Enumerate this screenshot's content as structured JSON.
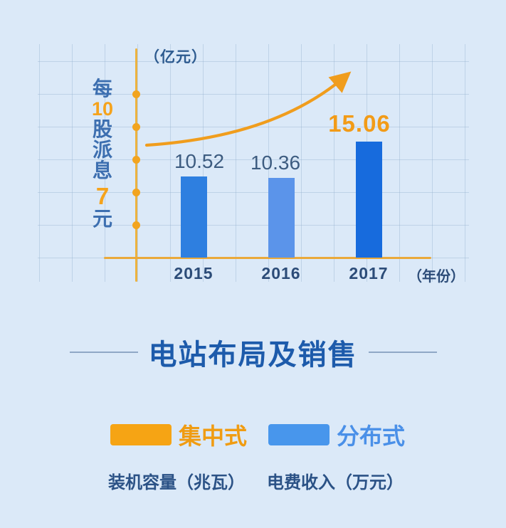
{
  "chart_data": {
    "type": "bar",
    "title": "每10股派息7元",
    "unit_label": "（亿元）",
    "xaxis_unit_label": "（年份）",
    "categories": [
      "2015",
      "2016",
      "2017"
    ],
    "values": [
      10.52,
      10.36,
      15.06
    ],
    "value_labels": [
      "10.52",
      "10.36",
      "15.06"
    ],
    "highlight_index": 2,
    "ylim": [
      0,
      18
    ],
    "grid": true,
    "bar_colors": [
      "#2e7fe0",
      "#5b94ea",
      "#176bdd"
    ],
    "annotation": "upward-trend-arrow"
  },
  "axis_caption": {
    "chars": [
      {
        "text": "每",
        "tone": "blue"
      },
      {
        "text": "10",
        "tone": "orange"
      },
      {
        "text": "股",
        "tone": "blue"
      },
      {
        "text": "派",
        "tone": "blue"
      },
      {
        "text": "息",
        "tone": "blue"
      },
      {
        "text": "7",
        "tone": "big-orange"
      },
      {
        "text": "元",
        "tone": "blue"
      }
    ]
  },
  "section": {
    "title": "电站布局及销售"
  },
  "legend": {
    "items": [
      {
        "label": "集中式",
        "swatch_color": "#f6a414",
        "text_color": "#f09c12"
      },
      {
        "label": "分布式",
        "swatch_color": "#4896ec",
        "text_color": "#4a90e8"
      }
    ]
  },
  "footer": {
    "labels": [
      "装机容量（兆瓦）",
      "电费收入（万元）"
    ]
  },
  "colors": {
    "background": "#dbe9f8",
    "grid_line": "#94afcd",
    "axis_orange": "#eaa93a",
    "dot_orange": "#f2a41f",
    "arrow_orange": "#f09d1d",
    "value_label": "#3d5c80",
    "value_label_highlight": "#f29b17",
    "axis_text": "#2c4c78",
    "section_title": "#1d5bab",
    "divider_line": "#8fa8c6",
    "footer_text": "#2b5286"
  }
}
